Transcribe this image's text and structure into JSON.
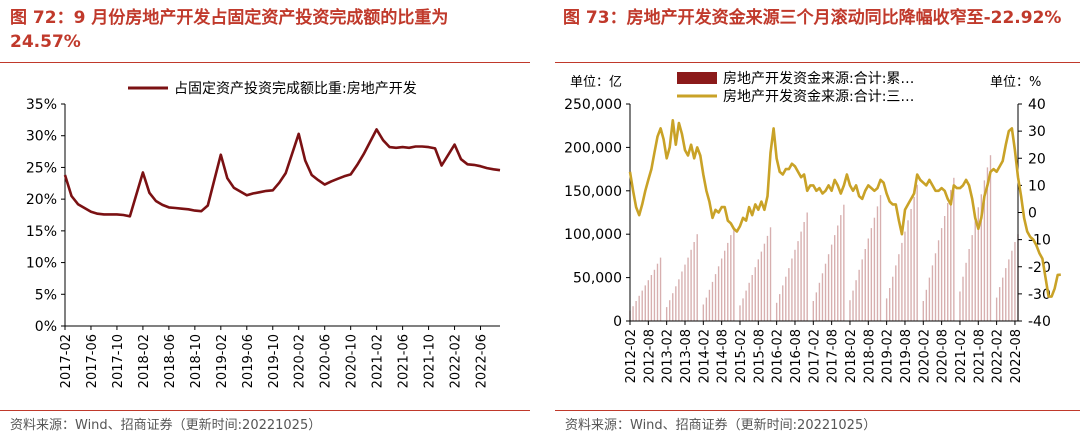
{
  "left": {
    "title": "图 72：9 月份房地产开发占固定资产投资完成额的比重为 24.57%",
    "source": "资料来源：Wind、招商证券（更新时间:20221025）"
  },
  "right": {
    "title": "图 73：房地产开发资金来源三个月滚动同比降幅收窄至-22.92%",
    "source": "资料来源：Wind、招商证券（更新时间:20221025）"
  },
  "chart_data": [
    {
      "type": "line",
      "legend": [
        "占固定资产投资完成额比重:房地产开发"
      ],
      "legend_position": "top",
      "line_color": "#7b1113",
      "x_ticks": [
        "2017-02",
        "2017-06",
        "2017-10",
        "2018-02",
        "2018-06",
        "2018-10",
        "2019-02",
        "2019-06",
        "2019-10",
        "2020-02",
        "2020-06",
        "2020-10",
        "2021-02",
        "2021-06",
        "2021-10",
        "2022-02",
        "2022-06"
      ],
      "y_ticks": [
        "0%",
        "5%",
        "10%",
        "15%",
        "20%",
        "25%",
        "30%",
        "35%"
      ],
      "ylim": [
        0,
        35
      ],
      "x": [
        "2017-02",
        "2017-03",
        "2017-04",
        "2017-05",
        "2017-06",
        "2017-07",
        "2017-08",
        "2017-09",
        "2017-10",
        "2017-11",
        "2017-12",
        "2018-02",
        "2018-03",
        "2018-04",
        "2018-05",
        "2018-06",
        "2018-07",
        "2018-08",
        "2018-09",
        "2018-10",
        "2018-11",
        "2018-12",
        "2019-02",
        "2019-03",
        "2019-04",
        "2019-05",
        "2019-06",
        "2019-07",
        "2019-08",
        "2019-09",
        "2019-10",
        "2019-11",
        "2019-12",
        "2020-02",
        "2020-03",
        "2020-04",
        "2020-05",
        "2020-06",
        "2020-07",
        "2020-08",
        "2020-09",
        "2020-10",
        "2020-11",
        "2020-12",
        "2021-02",
        "2021-03",
        "2021-04",
        "2021-05",
        "2021-06",
        "2021-07",
        "2021-08",
        "2021-09",
        "2021-10",
        "2021-11",
        "2021-12",
        "2022-02",
        "2022-03",
        "2022-04",
        "2022-05",
        "2022-06",
        "2022-07",
        "2022-08",
        "2022-09"
      ],
      "values": [
        23.8,
        20.5,
        19.2,
        18.6,
        18.0,
        17.7,
        17.6,
        17.6,
        17.6,
        17.5,
        17.3,
        24.2,
        21.0,
        19.7,
        19.1,
        18.7,
        18.6,
        18.5,
        18.4,
        18.2,
        18.1,
        19.0,
        27.0,
        23.3,
        21.8,
        21.2,
        20.6,
        20.9,
        21.1,
        21.3,
        21.4,
        22.6,
        24.1,
        30.3,
        26.1,
        23.8,
        23.0,
        22.3,
        22.8,
        23.2,
        23.6,
        23.9,
        25.4,
        27.1,
        31.0,
        29.3,
        28.2,
        28.1,
        28.2,
        28.1,
        28.3,
        28.3,
        28.2,
        28.0,
        25.3,
        28.6,
        26.3,
        25.5,
        25.4,
        25.2,
        24.9,
        24.7,
        24.57
      ]
    },
    {
      "type": "bar+line",
      "unit_left": "单位：亿",
      "unit_right": "单位：%",
      "legend": [
        "房地产开发资金来源:合计:累…",
        "房地产开发资金来源:合计:三…"
      ],
      "legend_position": "top",
      "bar_color": "#8b1a1a",
      "line_color": "#c9a227",
      "y_left_ticks": [
        "0",
        "50,000",
        "100,000",
        "150,000",
        "200,000",
        "250,000"
      ],
      "y_left_lim": [
        0,
        250000
      ],
      "y_right_ticks": [
        "-40",
        "-30",
        "-20",
        "-10",
        "0",
        "10",
        "20",
        "30",
        "40"
      ],
      "y_right_lim": [
        -40,
        40
      ],
      "x_ticks": [
        "2012-02",
        "2012-08",
        "2013-02",
        "2013-08",
        "2014-02",
        "2014-08",
        "2015-02",
        "2015-08",
        "2016-02",
        "2016-08",
        "2017-02",
        "2017-08",
        "2018-02",
        "2018-08",
        "2019-02",
        "2019-08",
        "2020-02",
        "2020-08",
        "2021-02",
        "2021-08",
        "2022-02",
        "2022-08"
      ],
      "bars": [
        {
          "year": 2012,
          "start_month": 2,
          "cumulative": [
            12000,
            17000,
            23000,
            29000,
            35000,
            41000,
            47000,
            53000,
            59000,
            66000,
            73000
          ]
        },
        {
          "year": 2013,
          "cumulative": [
            16000,
            24000,
            32000,
            40000,
            48000,
            57000,
            65000,
            73000,
            82000,
            91000,
            100000
          ]
        },
        {
          "year": 2014,
          "cumulative": [
            19000,
            27000,
            36000,
            45000,
            54000,
            63000,
            72000,
            81000,
            90000,
            99000,
            108000
          ]
        },
        {
          "year": 2015,
          "cumulative": [
            18000,
            26000,
            35000,
            44000,
            53000,
            62000,
            71000,
            80000,
            89000,
            98000,
            108000
          ]
        },
        {
          "year": 2016,
          "cumulative": [
            21000,
            31000,
            41000,
            51000,
            61000,
            72000,
            82000,
            92000,
            103000,
            114000,
            125000
          ]
        },
        {
          "year": 2017,
          "cumulative": [
            23000,
            33000,
            44000,
            55000,
            66000,
            77000,
            88000,
            99000,
            110000,
            122000,
            134000
          ]
        },
        {
          "year": 2018,
          "cumulative": [
            24000,
            35000,
            47000,
            59000,
            71000,
            83000,
            95000,
            107000,
            119000,
            132000,
            145000
          ]
        },
        {
          "year": 2019,
          "cumulative": [
            26000,
            38000,
            51000,
            64000,
            77000,
            90000,
            103000,
            116000,
            129000,
            143000,
            157000
          ]
        },
        {
          "year": 2020,
          "cumulative": [
            23000,
            36000,
            50000,
            64000,
            78000,
            93000,
            107000,
            121000,
            136000,
            151000,
            165000
          ]
        },
        {
          "year": 2021,
          "cumulative": [
            34000,
            51000,
            67000,
            83000,
            99000,
            115000,
            131000,
            146000,
            162000,
            177000,
            191000
          ]
        },
        {
          "year": 2022,
          "cumulative": [
            27000,
            39000,
            50000,
            61000,
            71000,
            81000,
            91000,
            100000
          ]
        }
      ],
      "line_values": [
        15,
        8,
        2,
        -1,
        3,
        8,
        12,
        16,
        22,
        28,
        31,
        27,
        20,
        24,
        34,
        25,
        33,
        29,
        23,
        21,
        25,
        20,
        24,
        21,
        14,
        8,
        4,
        -2,
        1,
        0,
        2,
        2,
        -3,
        -4,
        -6,
        -7,
        -5,
        -2,
        -3,
        2,
        -1,
        3,
        1,
        4,
        1,
        6,
        22,
        31,
        20,
        15,
        14,
        16,
        16,
        18,
        17,
        15,
        13,
        14,
        8,
        10,
        10,
        8,
        9,
        7,
        8,
        10,
        8,
        12,
        10,
        7,
        10,
        14,
        10,
        8,
        10,
        6,
        5,
        8,
        10,
        9,
        8,
        9,
        12,
        11,
        7,
        4,
        3,
        3,
        -3,
        -8,
        1,
        3,
        5,
        7,
        14,
        12,
        11,
        10,
        12,
        10,
        8,
        8,
        9,
        8,
        5,
        3,
        10,
        9,
        9,
        10,
        12,
        10,
        5,
        -2,
        -6,
        -2,
        6,
        10,
        15,
        16,
        15,
        17,
        19,
        25,
        30,
        31,
        23,
        13,
        6,
        -2,
        -7,
        -9,
        -10,
        -12,
        -15,
        -17,
        -24,
        -31,
        -31,
        -28,
        -23,
        -22.92
      ]
    }
  ]
}
